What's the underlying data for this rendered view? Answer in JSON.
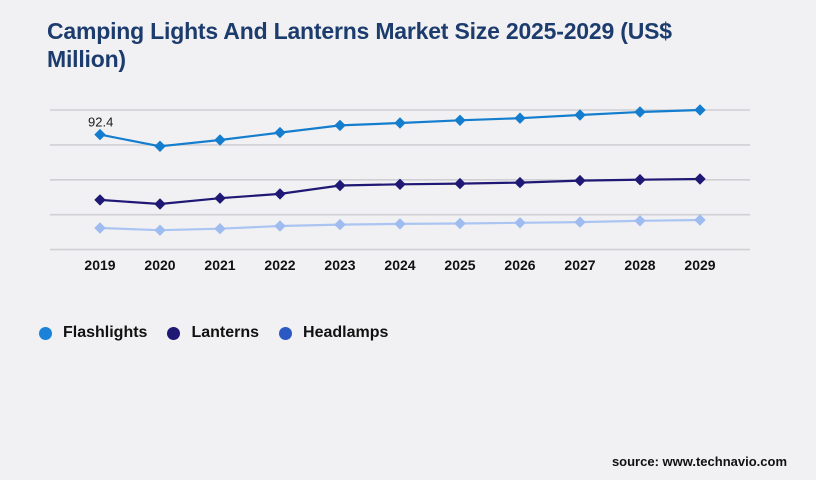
{
  "title": {
    "line1": "Camping Lights And Lanterns Market Size 2025-2029 (US$",
    "line2": "Million)"
  },
  "colors": {
    "background": "#f1f1f3",
    "title": "#1d3c6e",
    "gridline": "#d0d0d4",
    "axis_text": "#111111",
    "label_text": "#1a1a1a"
  },
  "chart_data": {
    "type": "line",
    "title": "Camping Lights And Lanterns Market Size 2025-2029 (US$ Million)",
    "categories": [
      "2019",
      "2020",
      "2021",
      "2022",
      "2023",
      "2024",
      "2025",
      "2026",
      "2027",
      "2028",
      "2029"
    ],
    "series": [
      {
        "name": "Flashlights",
        "color": "#147dce",
        "marker": "diamond",
        "values": [
          92.4,
          84.0,
          88.5,
          93.8,
          99.0,
          100.7,
          102.6,
          104.1,
          106.4,
          108.6,
          110.0
        ]
      },
      {
        "name": "Lanterns",
        "color": "#1f1874",
        "marker": "diamond",
        "values": [
          45.6,
          42.7,
          46.8,
          49.9,
          55.9,
          56.8,
          57.3,
          58.0,
          59.4,
          60.1,
          60.6
        ]
      },
      {
        "name": "Headlamps",
        "color": "#abc5f2",
        "marker_color": "#9fbcf0",
        "marker": "diamond",
        "values": [
          25.5,
          23.9,
          25.0,
          26.9,
          27.9,
          28.4,
          28.7,
          29.2,
          29.7,
          30.6,
          31.2
        ]
      }
    ],
    "ylim": [
      10,
      110
    ],
    "gridline_step": 25,
    "grid": "horizontal-only",
    "y_axis_labels": "none",
    "legend_position": "bottom-left",
    "data_labels": [
      {
        "series": "Flashlights",
        "category": "2019",
        "text": "92.4"
      }
    ]
  },
  "legend": {
    "items": [
      {
        "label": "Flashlights",
        "color": "#1a82d8"
      },
      {
        "label": "Lanterns",
        "color": "#1f1874"
      },
      {
        "label": "Headlamps",
        "color": "#2b59c3"
      }
    ]
  },
  "source": {
    "text": "source: www.technavio.com"
  }
}
